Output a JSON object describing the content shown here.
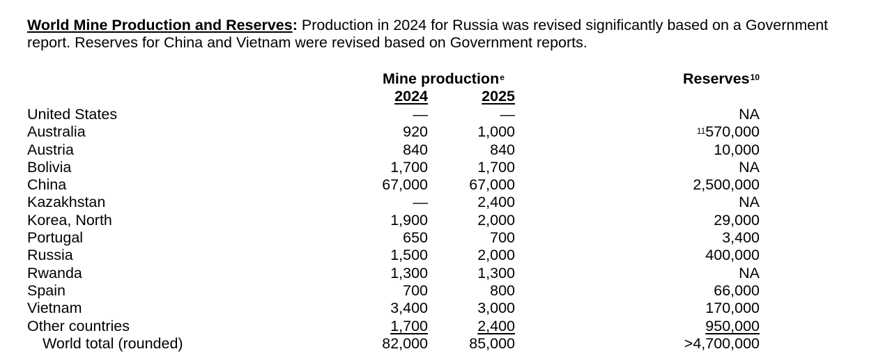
{
  "intro": {
    "heading": "World Mine Production and Reserves",
    "colon": ":",
    "text": " Production in 2024 for Russia was revised significantly based on a Government report. Reserves for China and Vietnam were revised based on Government reports."
  },
  "columns": {
    "mine_production": "Mine production",
    "mine_production_note": "e",
    "year1": "2024",
    "year2": "2025",
    "reserves": "Reserves",
    "reserves_note": "10"
  },
  "rows": [
    {
      "country": "United States",
      "p2024": "—",
      "p2025": "—",
      "reserves_note": "",
      "reserves": "NA"
    },
    {
      "country": "Australia",
      "p2024": "920",
      "p2025": "1,000",
      "reserves_note": "11",
      "reserves": "570,000"
    },
    {
      "country": "Austria",
      "p2024": "840",
      "p2025": "840",
      "reserves_note": "",
      "reserves": "10,000"
    },
    {
      "country": "Bolivia",
      "p2024": "1,700",
      "p2025": "1,700",
      "reserves_note": "",
      "reserves": "NA"
    },
    {
      "country": "China",
      "p2024": "67,000",
      "p2025": "67,000",
      "reserves_note": "",
      "reserves": "2,500,000"
    },
    {
      "country": "Kazakhstan",
      "p2024": "—",
      "p2025": "2,400",
      "reserves_note": "",
      "reserves": "NA"
    },
    {
      "country": "Korea, North",
      "p2024": "1,900",
      "p2025": "2,000",
      "reserves_note": "",
      "reserves": "29,000"
    },
    {
      "country": "Portugal",
      "p2024": "650",
      "p2025": "700",
      "reserves_note": "",
      "reserves": "3,400"
    },
    {
      "country": "Russia",
      "p2024": "1,500",
      "p2025": "2,000",
      "reserves_note": "",
      "reserves": "400,000"
    },
    {
      "country": "Rwanda",
      "p2024": "1,300",
      "p2025": "1,300",
      "reserves_note": "",
      "reserves": "NA"
    },
    {
      "country": "Spain",
      "p2024": "700",
      "p2025": "800",
      "reserves_note": "",
      "reserves": "66,000"
    },
    {
      "country": "Vietnam",
      "p2024": "3,400",
      "p2025": "3,000",
      "reserves_note": "",
      "reserves": "170,000"
    },
    {
      "country": "Other countries",
      "p2024": "1,700",
      "p2025": "2,400",
      "reserves_note": "",
      "reserves": "950,000"
    }
  ],
  "total": {
    "country": "World total (rounded)",
    "p2024": "82,000",
    "p2025": "85,000",
    "reserves": ">4,700,000"
  }
}
